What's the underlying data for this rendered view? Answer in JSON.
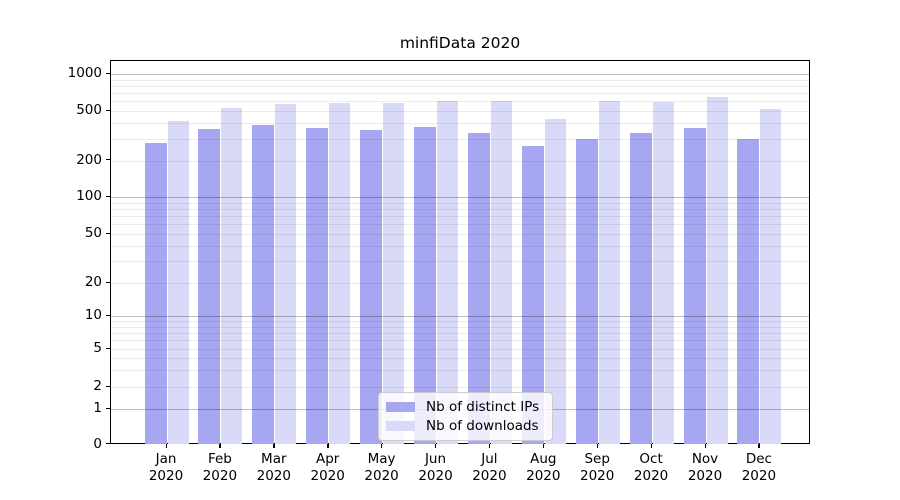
{
  "title": "minfiData 2020",
  "colors": {
    "ips": "#a6a6f1",
    "downloads": "#d9d9f8",
    "grid_minor": "rgba(0,0,0,0.075)",
    "grid_major": "rgba(0,0,0,0.26)",
    "spine": "#000000",
    "legend_border": "#cccccc"
  },
  "legend": {
    "items": [
      {
        "label": "Nb of distinct IPs",
        "color_key": "ips"
      },
      {
        "label": "Nb of downloads",
        "color_key": "downloads"
      }
    ]
  },
  "y_axis": {
    "tick_values": [
      0,
      1,
      2,
      5,
      10,
      20,
      50,
      100,
      200,
      500,
      1000
    ],
    "tick_labels": [
      "0",
      "1",
      "2",
      "5",
      "10",
      "20",
      "50",
      "100",
      "200",
      "500",
      "1000"
    ],
    "major_grid_values": [
      1,
      10,
      100,
      1000
    ]
  },
  "x_axis": {
    "labels": [
      {
        "top": "Jan",
        "bottom": "2020"
      },
      {
        "top": "Feb",
        "bottom": "2020"
      },
      {
        "top": "Mar",
        "bottom": "2020"
      },
      {
        "top": "Apr",
        "bottom": "2020"
      },
      {
        "top": "May",
        "bottom": "2020"
      },
      {
        "top": "Jun",
        "bottom": "2020"
      },
      {
        "top": "Jul",
        "bottom": "2020"
      },
      {
        "top": "Aug",
        "bottom": "2020"
      },
      {
        "top": "Sep",
        "bottom": "2020"
      },
      {
        "top": "Oct",
        "bottom": "2020"
      },
      {
        "top": "Nov",
        "bottom": "2020"
      },
      {
        "top": "Dec",
        "bottom": "2020"
      }
    ]
  },
  "chart_data": {
    "type": "bar",
    "title": "minfiData 2020",
    "categories": [
      "Jan 2020",
      "Feb 2020",
      "Mar 2020",
      "Apr 2020",
      "May 2020",
      "Jun 2020",
      "Jul 2020",
      "Aug 2020",
      "Sep 2020",
      "Oct 2020",
      "Nov 2020",
      "Dec 2020"
    ],
    "series": [
      {
        "name": "Nb of distinct IPs",
        "values": [
          275,
          360,
          385,
          365,
          355,
          370,
          330,
          260,
          300,
          335,
          365,
          300
        ]
      },
      {
        "name": "Nb of downloads",
        "values": [
          415,
          530,
          570,
          580,
          580,
          600,
          600,
          430,
          600,
          590,
          650,
          520
        ]
      }
    ],
    "xlabel": "",
    "ylabel": "",
    "yscale": "symlog",
    "y_ticks": [
      0,
      1,
      2,
      5,
      10,
      20,
      50,
      100,
      200,
      500,
      1000
    ],
    "ylim": [
      0,
      1300
    ],
    "grid": "horizontal, major and minor",
    "legend_position": "lower center (inside plot)"
  }
}
